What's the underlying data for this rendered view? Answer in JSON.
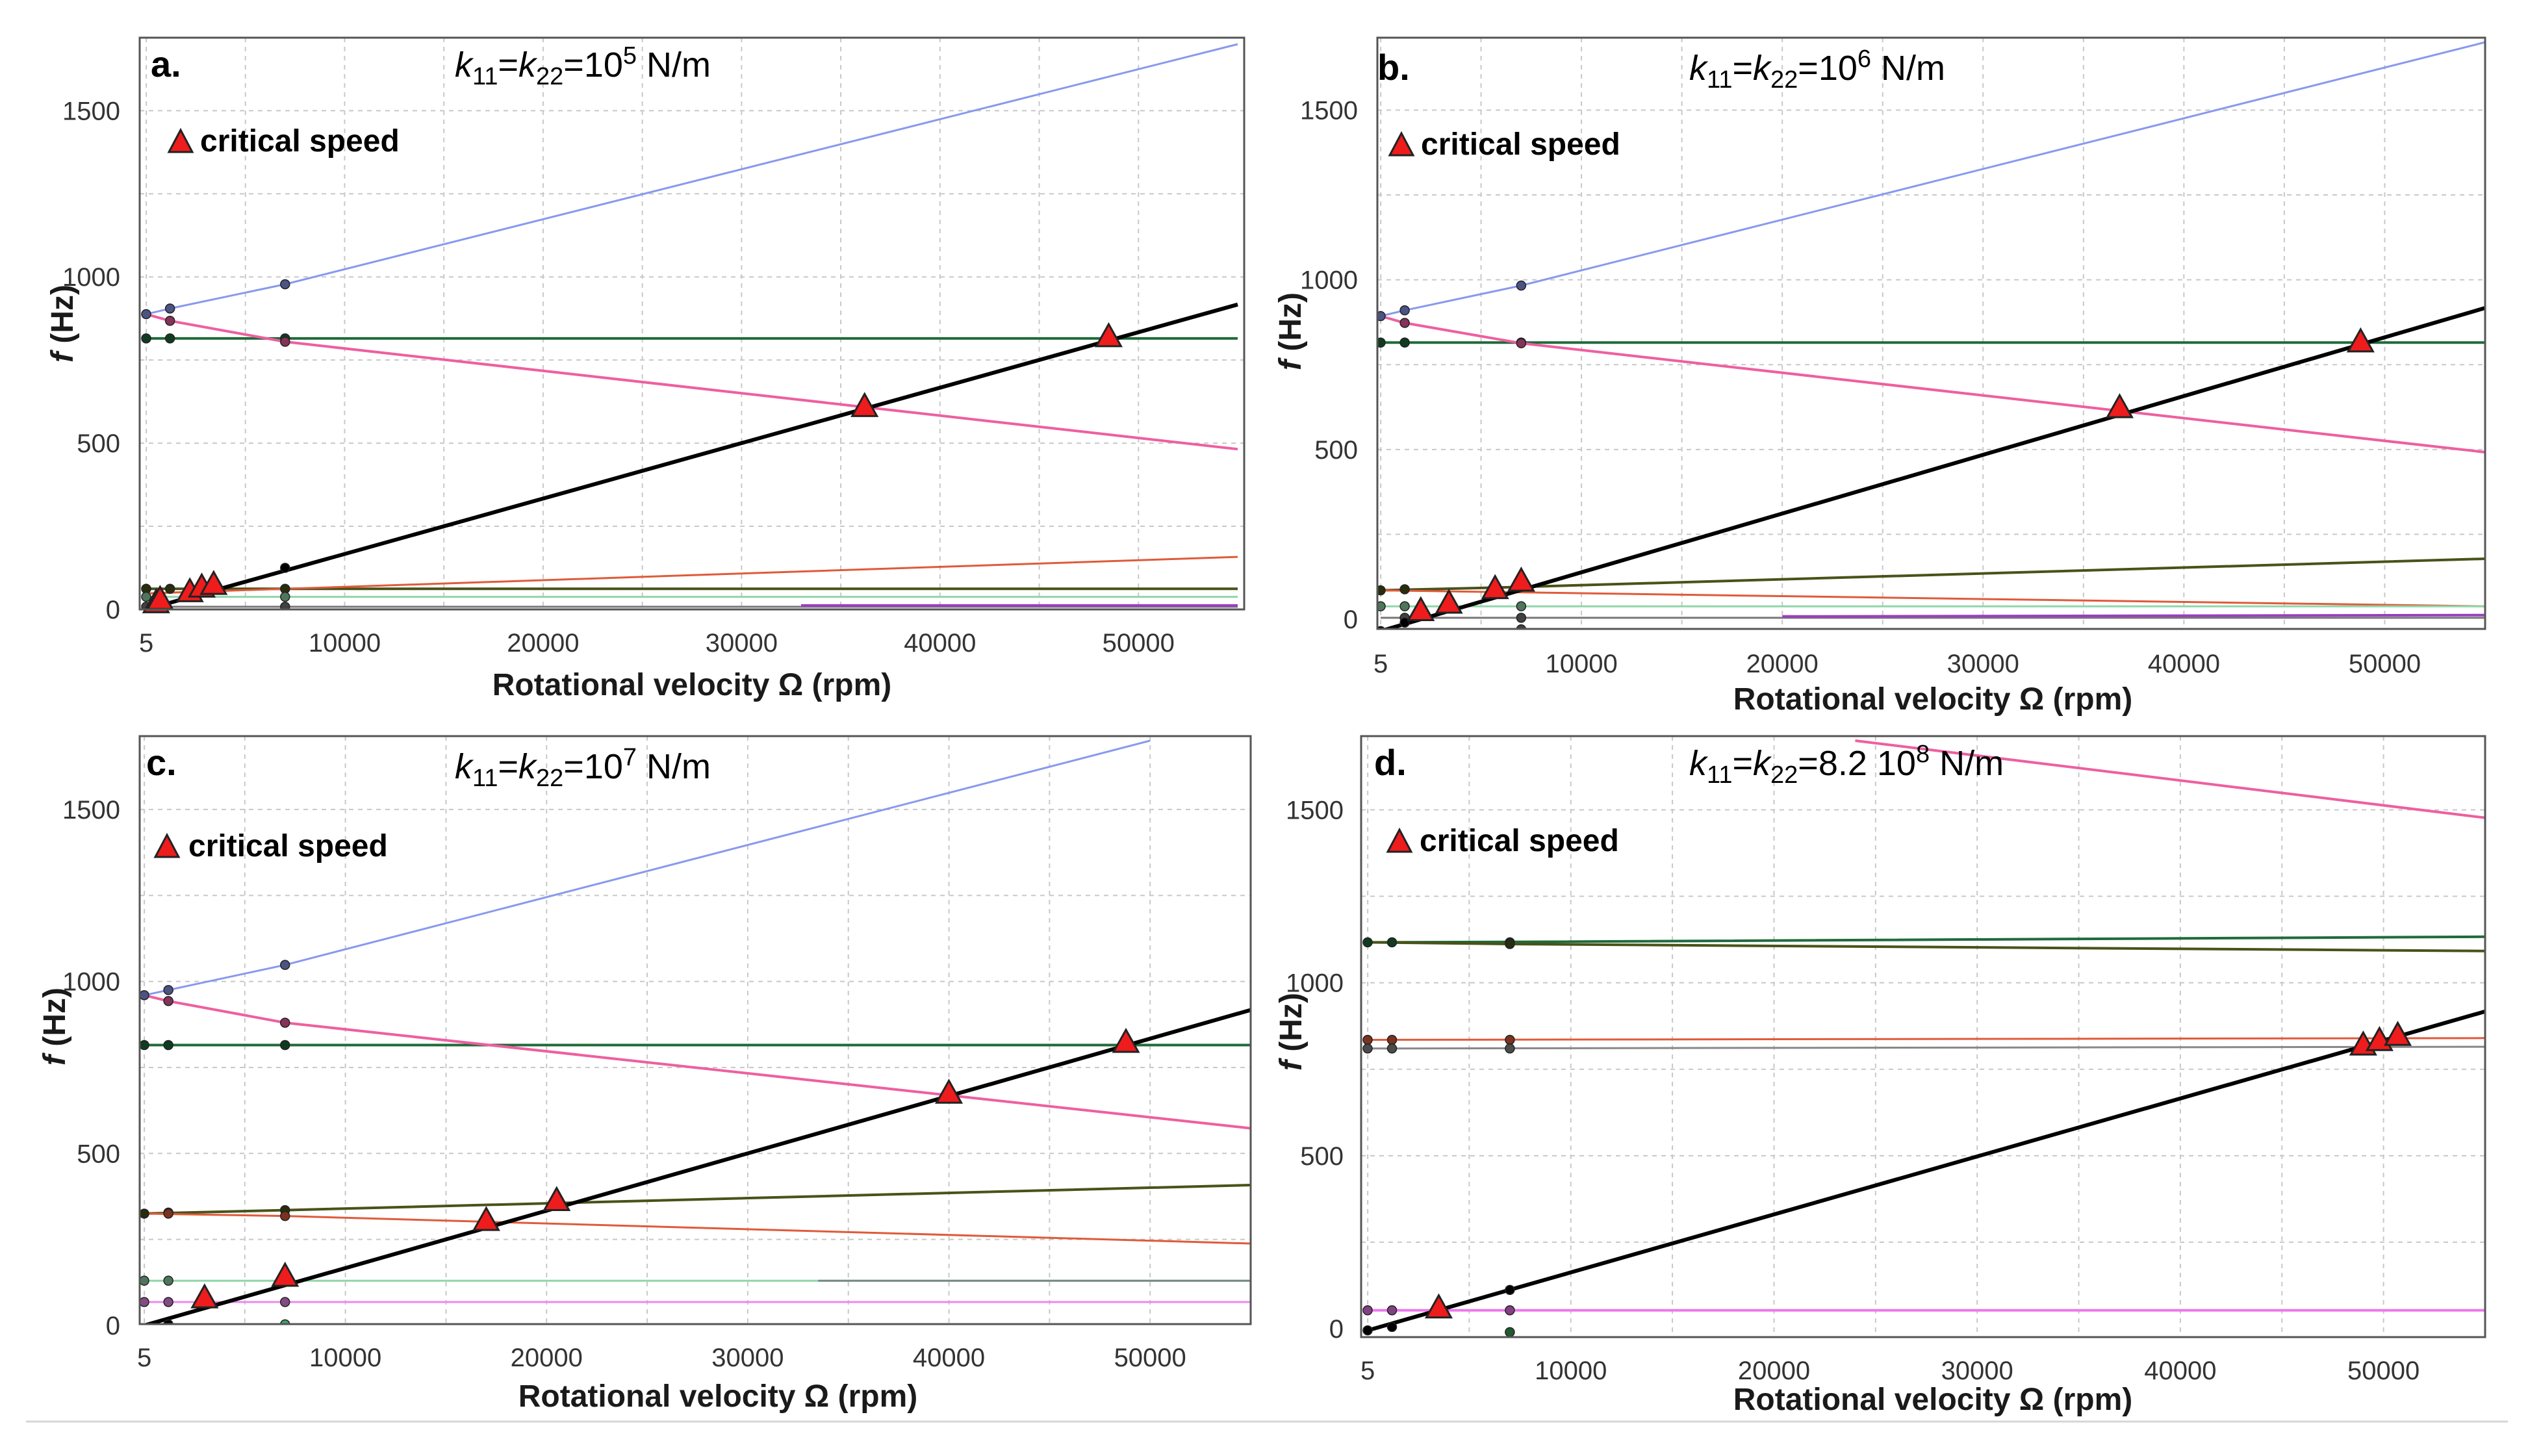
{
  "figure": {
    "footer_rule": true
  },
  "chart_data": [
    {
      "type": "line",
      "panel_label": "a.",
      "title": "k11=k22=10^5 N/m",
      "title_parts": {
        "k": "k",
        "sub1": "11",
        "eq": "=",
        "sub2": "22",
        "val": "=10",
        "exp": "5",
        "unit": " N/m"
      },
      "legend": "critical speed",
      "xlabel": "Rotational velocity Ω (rpm)",
      "ylabel": "f (Hz)",
      "ylabel_italic": "f",
      "ylabel_rest": " (Hz)",
      "xlim": [
        0,
        55000
      ],
      "ylim": [
        0,
        1700
      ],
      "xticks": [
        5,
        10000,
        20000,
        30000,
        40000,
        50000
      ],
      "yticks": [
        0,
        500,
        1000,
        1500
      ],
      "series": [
        {
          "name": "mode-blue",
          "color": "#8899ee",
          "width": 3,
          "points": [
            [
              0,
              888
            ],
            [
              1200,
              905
            ],
            [
              7000,
              978
            ],
            [
              55000,
              1700
            ]
          ]
        },
        {
          "name": "mode-green",
          "color": "#1f6b3a",
          "width": 4,
          "points": [
            [
              0,
              815
            ],
            [
              55000,
              815
            ]
          ]
        },
        {
          "name": "mode-pink",
          "color": "#ee5fa0",
          "width": 4,
          "points": [
            [
              0,
              888
            ],
            [
              1200,
              868
            ],
            [
              7000,
              805
            ],
            [
              55000,
              482
            ]
          ]
        },
        {
          "name": "mode-olive",
          "color": "#4a5218",
          "width": 4,
          "points": [
            [
              0,
              62
            ],
            [
              55000,
              62
            ]
          ]
        },
        {
          "name": "mode-red",
          "color": "#e05a3a",
          "width": 3,
          "points": [
            [
              0,
              48
            ],
            [
              7000,
              62
            ],
            [
              55000,
              158
            ]
          ]
        },
        {
          "name": "mode-lightgreen",
          "color": "#8fd6a8",
          "width": 3,
          "points": [
            [
              0,
              38
            ],
            [
              55000,
              38
            ]
          ]
        },
        {
          "name": "mode-gray",
          "color": "#777777",
          "width": 3,
          "points": [
            [
              0,
              8
            ],
            [
              55000,
              8
            ]
          ]
        },
        {
          "name": "mode-purple",
          "color": "#9a3fbf",
          "width": 4,
          "points": [
            [
              33000,
              12
            ],
            [
              55000,
              12
            ]
          ]
        },
        {
          "name": "excitation-1x",
          "color": "#000000",
          "width": 6,
          "points": [
            [
              0,
              0
            ],
            [
              55000,
              917
            ]
          ]
        }
      ],
      "markers": [
        [
          0,
          888
        ],
        [
          1200,
          905
        ],
        [
          7000,
          978
        ],
        [
          0,
          815
        ],
        [
          1200,
          815
        ],
        [
          7000,
          815
        ],
        [
          1200,
          868
        ],
        [
          7000,
          805
        ],
        [
          0,
          62
        ],
        [
          1200,
          62
        ],
        [
          7000,
          62
        ],
        [
          7000,
          125
        ],
        [
          7000,
          38
        ],
        [
          7000,
          8
        ],
        [
          0,
          8
        ],
        [
          0,
          38
        ]
      ],
      "critical_speeds": [
        [
          500,
          15
        ],
        [
          700,
          25
        ],
        [
          2200,
          48
        ],
        [
          2800,
          62
        ],
        [
          3400,
          70
        ],
        [
          36200,
          605
        ],
        [
          48500,
          815
        ]
      ]
    },
    {
      "type": "line",
      "panel_label": "b.",
      "title": "k11=k22=10^6 N/m",
      "title_parts": {
        "k": "k",
        "sub1": "11",
        "eq": "=",
        "sub2": "22",
        "val": "=10",
        "exp": "6",
        "unit": " N/m"
      },
      "legend": "critical speed",
      "xlabel": "Rotational velocity Ω (rpm)",
      "ylabel": "f (Hz)",
      "ylabel_italic": "f",
      "ylabel_rest": " (Hz)",
      "xlim": [
        0,
        55000
      ],
      "ylim": [
        0,
        1700
      ],
      "xticks": [
        5,
        10000,
        20000,
        30000,
        40000,
        50000
      ],
      "yticks": [
        0,
        500,
        1000,
        1500
      ],
      "series": [
        {
          "name": "mode-blue",
          "color": "#8899ee",
          "width": 3,
          "points": [
            [
              0,
              893
            ],
            [
              1200,
              910
            ],
            [
              7000,
              983
            ],
            [
              55000,
              1700
            ]
          ]
        },
        {
          "name": "mode-green",
          "color": "#1f6b3a",
          "width": 4,
          "points": [
            [
              0,
              815
            ],
            [
              55000,
              815
            ]
          ]
        },
        {
          "name": "mode-pink",
          "color": "#ee5fa0",
          "width": 4,
          "points": [
            [
              0,
              893
            ],
            [
              1200,
              873
            ],
            [
              7000,
              813
            ],
            [
              55000,
              492
            ]
          ]
        },
        {
          "name": "mode-olive",
          "color": "#4a5218",
          "width": 4,
          "points": [
            [
              0,
              85
            ],
            [
              7000,
              95
            ],
            [
              55000,
              178
            ]
          ]
        },
        {
          "name": "mode-red",
          "color": "#e05a3a",
          "width": 3,
          "points": [
            [
              0,
              85
            ],
            [
              55000,
              38
            ]
          ]
        },
        {
          "name": "mode-lightgreen",
          "color": "#8fd6a8",
          "width": 3,
          "points": [
            [
              0,
              38
            ],
            [
              55000,
              38
            ]
          ]
        },
        {
          "name": "mode-gray",
          "color": "#777777",
          "width": 3,
          "points": [
            [
              0,
              4
            ],
            [
              55000,
              4
            ]
          ]
        },
        {
          "name": "mode-purple",
          "color": "#9a3fbf",
          "width": 4,
          "points": [
            [
              20000,
              8
            ],
            [
              55000,
              12
            ]
          ]
        },
        {
          "name": "excitation-1x",
          "color": "#000000",
          "width": 6,
          "points": [
            [
              0,
              -35
            ],
            [
              55000,
              917
            ]
          ]
        }
      ],
      "markers": [
        [
          0,
          893
        ],
        [
          1200,
          910
        ],
        [
          7000,
          983
        ],
        [
          0,
          815
        ],
        [
          1200,
          815
        ],
        [
          7000,
          815
        ],
        [
          1200,
          873
        ],
        [
          7000,
          813
        ],
        [
          0,
          85
        ],
        [
          1200,
          88
        ],
        [
          7000,
          95
        ],
        [
          7000,
          38
        ],
        [
          7000,
          4
        ],
        [
          7000,
          -30
        ],
        [
          0,
          38
        ],
        [
          1200,
          38
        ],
        [
          1200,
          4
        ],
        [
          1200,
          -10
        ],
        [
          0,
          -35
        ]
      ],
      "critical_speeds": [
        [
          2000,
          20
        ],
        [
          3400,
          42
        ],
        [
          5700,
          85
        ],
        [
          7000,
          107
        ],
        [
          36800,
          618
        ],
        [
          48800,
          812
        ]
      ]
    },
    {
      "type": "line",
      "panel_label": "c.",
      "title": "k11=k22=10^7 N/m",
      "title_parts": {
        "k": "k",
        "sub1": "11",
        "eq": "=",
        "sub2": "22",
        "val": "=10",
        "exp": "7",
        "unit": " N/m"
      },
      "legend": "critical speed",
      "xlabel": "Rotational velocity Ω (rpm)",
      "ylabel": "f (Hz)",
      "ylabel_italic": "f",
      "ylabel_rest": " (Hz)",
      "xlim": [
        0,
        55000
      ],
      "ylim": [
        0,
        1700
      ],
      "xticks": [
        5,
        10000,
        20000,
        30000,
        40000,
        50000
      ],
      "yticks": [
        0,
        500,
        1000,
        1500
      ],
      "series": [
        {
          "name": "mode-blue",
          "color": "#8899ee",
          "width": 3,
          "points": [
            [
              0,
              960
            ],
            [
              1200,
              975
            ],
            [
              7000,
              1048
            ],
            [
              50000,
              1700
            ]
          ]
        },
        {
          "name": "mode-green",
          "color": "#1f6b3a",
          "width": 4,
          "points": [
            [
              0,
              815
            ],
            [
              55000,
              815
            ]
          ]
        },
        {
          "name": "mode-pink",
          "color": "#ee5fa0",
          "width": 4,
          "points": [
            [
              0,
              960
            ],
            [
              1200,
              943
            ],
            [
              7000,
              880
            ],
            [
              55000,
              573
            ]
          ]
        },
        {
          "name": "mode-olive",
          "color": "#4a5218",
          "width": 4,
          "points": [
            [
              0,
              325
            ],
            [
              7000,
              335
            ],
            [
              55000,
              408
            ]
          ]
        },
        {
          "name": "mode-red",
          "color": "#e05a3a",
          "width": 3,
          "points": [
            [
              0,
              325
            ],
            [
              7000,
              318
            ],
            [
              55000,
              238
            ]
          ]
        },
        {
          "name": "mode-lightgreen",
          "color": "#8fd6a8",
          "width": 3,
          "points": [
            [
              0,
              130
            ],
            [
              55000,
              130
            ]
          ]
        },
        {
          "name": "mode-darkgray",
          "color": "#778888",
          "width": 3,
          "points": [
            [
              33500,
              130
            ],
            [
              55000,
              130
            ]
          ]
        },
        {
          "name": "mode-pink-low",
          "color": "#ee88ee",
          "width": 3,
          "points": [
            [
              0,
              68
            ],
            [
              55000,
              68
            ]
          ]
        },
        {
          "name": "excitation-1x",
          "color": "#000000",
          "width": 6,
          "points": [
            [
              0,
              0
            ],
            [
              55000,
              917
            ]
          ]
        }
      ],
      "markers": [
        [
          0,
          960
        ],
        [
          1200,
          975
        ],
        [
          7000,
          1048
        ],
        [
          1200,
          943
        ],
        [
          7000,
          880
        ],
        [
          0,
          815
        ],
        [
          1200,
          815
        ],
        [
          7000,
          815
        ],
        [
          0,
          325
        ],
        [
          1200,
          328
        ],
        [
          7000,
          335
        ],
        [
          1200,
          325
        ],
        [
          7000,
          318
        ],
        [
          0,
          130
        ],
        [
          1200,
          130
        ],
        [
          0,
          68
        ],
        [
          1200,
          68
        ],
        [
          7000,
          68
        ],
        [
          1200,
          3
        ],
        [
          7000,
          3
        ]
      ],
      "critical_speeds": [
        [
          3000,
          75
        ],
        [
          7000,
          138
        ],
        [
          17000,
          300
        ],
        [
          20500,
          358
        ],
        [
          40000,
          670
        ],
        [
          48800,
          818
        ]
      ]
    },
    {
      "type": "line",
      "panel_label": "d.",
      "title": "k11=k22=8.2 10^8 N/m",
      "title_parts": {
        "k": "k",
        "sub1": "11",
        "eq": "=",
        "sub2": "22",
        "val": "=8.2 10",
        "exp": "8",
        "unit": " N/m"
      },
      "legend": "critical speed",
      "xlabel": "Rotational velocity Ω (rpm)",
      "ylabel": "f (Hz)",
      "ylabel_italic": "f",
      "ylabel_rest": " (Hz)",
      "xlim": [
        0,
        55000
      ],
      "ylim": [
        0,
        1700
      ],
      "xticks": [
        5,
        10000,
        20000,
        30000,
        40000,
        50000
      ],
      "yticks": [
        0,
        500,
        1000,
        1500
      ],
      "series": [
        {
          "name": "mode-pink",
          "color": "#ee5fa0",
          "width": 4,
          "points": [
            [
              24000,
              1700
            ],
            [
              55000,
              1477
            ]
          ]
        },
        {
          "name": "mode-green",
          "color": "#1f6b3a",
          "width": 4,
          "points": [
            [
              0,
              1117
            ],
            [
              7000,
              1118
            ],
            [
              55000,
              1133
            ]
          ]
        },
        {
          "name": "mode-olive",
          "color": "#4a5218",
          "width": 4,
          "points": [
            [
              0,
              1117
            ],
            [
              7000,
              1112
            ],
            [
              55000,
              1092
            ]
          ]
        },
        {
          "name": "mode-red",
          "color": "#e05a3a",
          "width": 3,
          "points": [
            [
              0,
              835
            ],
            [
              55000,
              840
            ]
          ]
        },
        {
          "name": "mode-gray",
          "color": "#888888",
          "width": 3,
          "points": [
            [
              0,
              810
            ],
            [
              55000,
              815
            ]
          ]
        },
        {
          "name": "mode-pink-low",
          "color": "#ee77ee",
          "width": 4,
          "points": [
            [
              0,
              53
            ],
            [
              55000,
              53
            ]
          ]
        },
        {
          "name": "excitation-1x",
          "color": "#000000",
          "width": 6,
          "points": [
            [
              0,
              -5
            ],
            [
              55000,
              917
            ]
          ]
        }
      ],
      "markers": [
        [
          0,
          1117
        ],
        [
          1200,
          1117
        ],
        [
          7000,
          1117
        ],
        [
          7000,
          1112
        ],
        [
          0,
          835
        ],
        [
          1200,
          835
        ],
        [
          7000,
          835
        ],
        [
          0,
          810
        ],
        [
          1200,
          810
        ],
        [
          7000,
          810
        ],
        [
          0,
          53
        ],
        [
          1200,
          53
        ],
        [
          7000,
          53
        ],
        [
          7000,
          112
        ],
        [
          1200,
          5
        ],
        [
          7000,
          -10
        ],
        [
          0,
          -5
        ]
      ],
      "critical_speeds": [
        [
          3500,
          55
        ],
        [
          49000,
          815
        ],
        [
          49800,
          828
        ],
        [
          50700,
          843
        ]
      ]
    }
  ]
}
